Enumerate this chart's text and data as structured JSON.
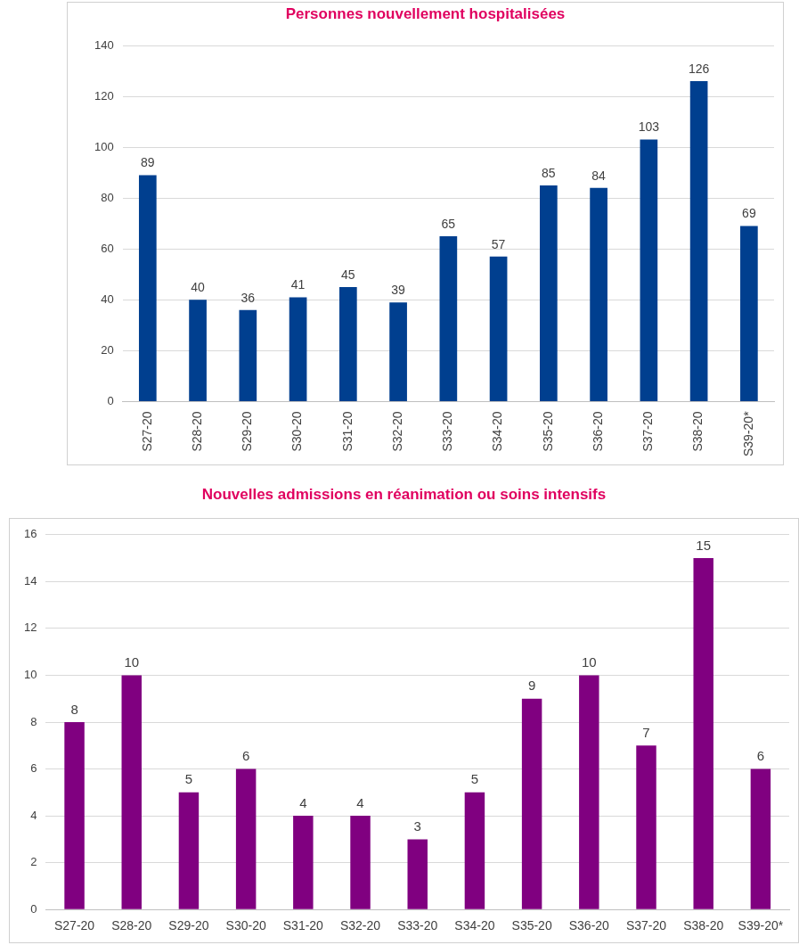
{
  "chart_data": [
    {
      "type": "bar",
      "title": "Personnes nouvellement hospitalisées",
      "categories": [
        "S27-20",
        "S28-20",
        "S29-20",
        "S30-20",
        "S31-20",
        "S32-20",
        "S33-20",
        "S34-20",
        "S35-20",
        "S36-20",
        "S37-20",
        "S38-20",
        "S39-20*"
      ],
      "values": [
        89,
        40,
        36,
        41,
        45,
        39,
        65,
        57,
        85,
        84,
        103,
        126,
        69
      ],
      "color": "#003f8f",
      "ylim": [
        0,
        140
      ],
      "yticks": [
        0,
        20,
        40,
        60,
        80,
        100,
        120,
        140
      ],
      "grid": "y",
      "data_labels": true
    },
    {
      "type": "bar",
      "title": "Nouvelles admissions en réanimation ou soins intensifs",
      "categories": [
        "S27-20",
        "S28-20",
        "S29-20",
        "S30-20",
        "S31-20",
        "S32-20",
        "S33-20",
        "S34-20",
        "S35-20",
        "S36-20",
        "S37-20",
        "S38-20",
        "S39-20*"
      ],
      "values": [
        8,
        10,
        5,
        6,
        4,
        4,
        3,
        5,
        9,
        10,
        7,
        15,
        6
      ],
      "color": "#800080",
      "ylim": [
        0,
        16
      ],
      "yticks": [
        0,
        2,
        4,
        6,
        8,
        10,
        12,
        14,
        16
      ],
      "grid": "y",
      "data_labels": true
    }
  ]
}
